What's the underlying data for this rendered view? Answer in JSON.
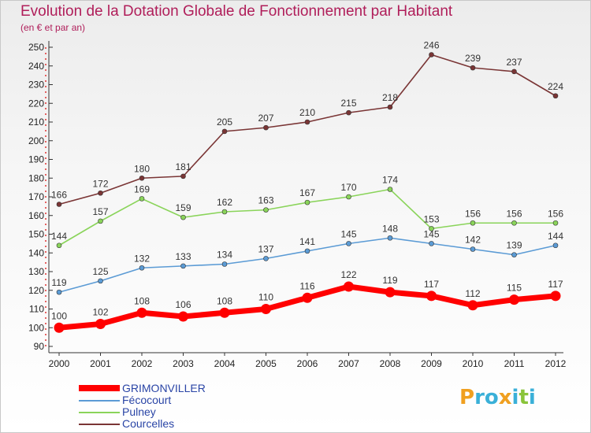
{
  "chart_data": {
    "type": "line",
    "title": "Evolution de la Dotation Globale de Fonctionnement par Habitant",
    "subtitle": "(en € et par an)",
    "x": [
      "2000",
      "2001",
      "2002",
      "2003",
      "2004",
      "2005",
      "2006",
      "2007",
      "2008",
      "2009",
      "2010",
      "2011",
      "2012"
    ],
    "yticks": [
      90,
      100,
      110,
      120,
      130,
      140,
      150,
      160,
      170,
      180,
      190,
      200,
      210,
      220,
      230,
      240,
      250
    ],
    "ylim": [
      90,
      250
    ],
    "grid": false,
    "legend_position": "bottom-left",
    "series": [
      {
        "name": "GRIMONVILLER",
        "color": "#ff0000",
        "values": [
          100,
          102,
          108,
          106,
          108,
          110,
          116,
          122,
          119,
          117,
          112,
          115,
          117
        ]
      },
      {
        "name": "Fécocourt",
        "color": "#5b9bd5",
        "values": [
          119,
          125,
          132,
          133,
          134,
          137,
          141,
          145,
          148,
          145,
          142,
          139,
          144
        ]
      },
      {
        "name": "Pulney",
        "color": "#8ad45a",
        "values": [
          144,
          157,
          169,
          159,
          162,
          163,
          167,
          170,
          174,
          153,
          156,
          156,
          156
        ]
      },
      {
        "name": "Courcelles",
        "color": "#7a3535",
        "values": [
          166,
          172,
          180,
          181,
          205,
          207,
          210,
          215,
          218,
          246,
          239,
          237,
          224
        ]
      }
    ]
  },
  "logo": {
    "letters": [
      "P",
      "r",
      "o",
      "x",
      "i",
      "t",
      "i"
    ],
    "colors": [
      "#f0a020",
      "#3ab0d8",
      "#3ab0d8",
      "#f0a020",
      "#3ab0d8",
      "#8ac43a",
      "#3ab0d8"
    ]
  }
}
